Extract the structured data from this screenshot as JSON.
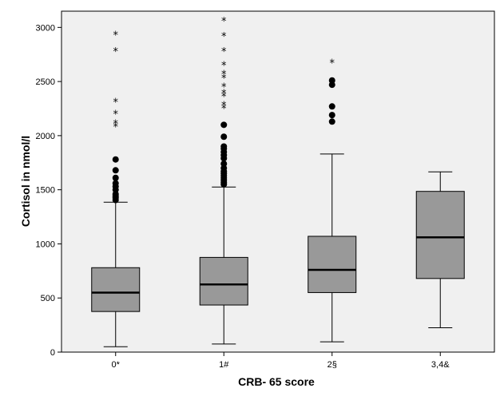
{
  "chart_data": {
    "type": "boxplot",
    "xlabel": "CRB- 65 score",
    "ylabel": "Cortisol in nmol/l",
    "ylim": [
      0,
      3150
    ],
    "yticks": [
      0,
      500,
      1000,
      1500,
      2000,
      2500,
      3000
    ],
    "categories": [
      "0*",
      "1#",
      "2§",
      "3,4&"
    ],
    "box_color": "#999999",
    "plot_background": "#f0f0f0",
    "boxes": [
      {
        "category": "0*",
        "whisker_low": 50,
        "q1": 375,
        "median": 550,
        "q3": 780,
        "whisker_high": 1385,
        "outliers": [
          1405,
          1425,
          1440,
          1460,
          1500,
          1530,
          1560,
          1610,
          1680,
          1780
        ],
        "extremes": [
          2090,
          2120,
          2210,
          2320,
          2790,
          2940
        ]
      },
      {
        "category": "1#",
        "whisker_low": 75,
        "q1": 435,
        "median": 625,
        "q3": 875,
        "whisker_high": 1525,
        "outliers": [
          1550,
          1570,
          1590,
          1610,
          1630,
          1650,
          1670,
          1700,
          1740,
          1790,
          1820,
          1850,
          1880,
          1900,
          1990,
          2100
        ],
        "extremes": [
          2260,
          2290,
          2370,
          2400,
          2460,
          2540,
          2580,
          2660,
          2790,
          2930,
          3070
        ]
      },
      {
        "category": "2§",
        "whisker_low": 95,
        "q1": 550,
        "median": 760,
        "q3": 1070,
        "whisker_high": 1830,
        "outliers": [
          2130,
          2190,
          2270,
          2470,
          2510
        ],
        "extremes": [
          2680
        ]
      },
      {
        "category": "3,4&",
        "whisker_low": 225,
        "q1": 680,
        "median": 1060,
        "q3": 1485,
        "whisker_high": 1665,
        "outliers": [],
        "extremes": []
      }
    ]
  }
}
